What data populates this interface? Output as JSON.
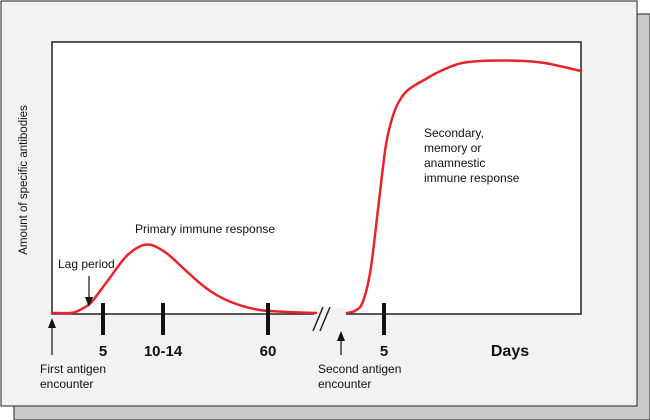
{
  "chart_data": {
    "type": "line",
    "title": "",
    "xlabel": "Days",
    "ylabel": "Amount of specific antibodies",
    "x_ticks_primary": [
      "5",
      "10-14",
      "60"
    ],
    "x_ticks_secondary": [
      "5"
    ],
    "axis_break": "//",
    "annotations": {
      "lag_period": "Lag period",
      "primary_response": "Primary immune response",
      "secondary_response": [
        "Secondary,",
        "memory or",
        "anamnestic",
        "immune response"
      ],
      "first_encounter": [
        "First antigen",
        "encounter"
      ],
      "second_encounter": [
        "Second antigen",
        "encounter"
      ]
    },
    "series": [
      {
        "name": "",
        "segments": [
          {
            "label": "primary",
            "x": [
              0,
              5,
              7,
              10,
              12,
              15,
              20,
              25,
              30,
              35,
              40,
              45,
              50,
              55,
              60,
              65,
              70
            ],
            "y": [
              0,
              0,
              1.5,
              6,
              12,
              22,
              38,
              45,
              40,
              29,
              18,
              10,
              5,
              2,
              1,
              0.4,
              0
            ],
            "x_range": [
              0,
              70
            ]
          },
          {
            "label": "secondary",
            "x": [
              0,
              1,
              2,
              3,
              4,
              5,
              6,
              7,
              8,
              10,
              12,
              15,
              20,
              25,
              30
            ],
            "y": [
              0,
              2,
              10,
              40,
              100,
              160,
              190,
              205,
              213,
              222,
              230,
              238,
              240,
              238,
              230
            ],
            "x_range": [
              0,
              30
            ]
          }
        ]
      }
    ],
    "colors": {
      "line": "#e8232a",
      "frame": "#222222",
      "shadow": "#cbcbcb",
      "panel": "#f2f2f2"
    }
  }
}
